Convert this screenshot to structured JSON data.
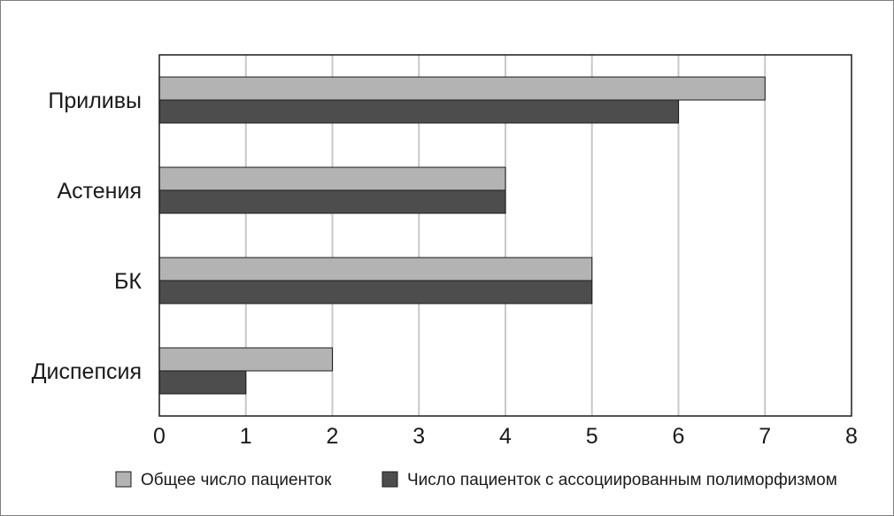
{
  "chart_data": {
    "type": "bar",
    "orientation": "horizontal",
    "categories": [
      "Приливы",
      "Астения",
      "БК",
      "Диспепсия"
    ],
    "series": [
      {
        "name": "Общее число пациенток",
        "values": [
          7,
          4,
          5,
          2
        ],
        "color": "#b3b3b3"
      },
      {
        "name": "Число пациенток с ассоциированным полиморфизмом",
        "values": [
          6,
          4,
          5,
          1
        ],
        "color": "#4d4d4d"
      }
    ],
    "xlim": [
      0,
      8
    ],
    "xticks": [
      "0",
      "1",
      "2",
      "3",
      "4",
      "5",
      "6",
      "7",
      "8"
    ],
    "grid": true,
    "legend_position": "bottom"
  }
}
